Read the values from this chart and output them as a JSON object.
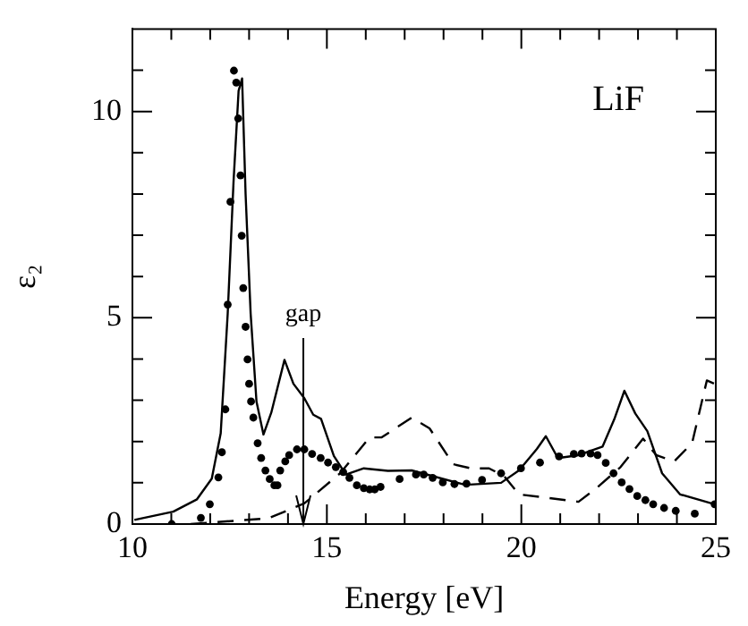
{
  "chart_data": {
    "type": "line",
    "xlabel": "Energy [eV]",
    "ylabel": "ε₂",
    "xlim": [
      10,
      25
    ],
    "ylim": [
      0,
      12
    ],
    "xticks": [
      10,
      {
        "value": 11,
        "label": null
      },
      {
        "value": 12,
        "label": null
      },
      {
        "value": 13,
        "label": null
      },
      {
        "value": 14,
        "label": null
      },
      15,
      {
        "value": 16,
        "label": null
      },
      {
        "value": 17,
        "label": null
      },
      {
        "value": 18,
        "label": null
      },
      {
        "value": 19,
        "label": null
      },
      20,
      {
        "value": 21,
        "label": null
      },
      {
        "value": 22,
        "label": null
      },
      {
        "value": 23,
        "label": null
      },
      {
        "value": 24,
        "label": null
      },
      25
    ],
    "yticks": [
      0,
      {
        "value": 1,
        "label": null
      },
      {
        "value": 2,
        "label": null
      },
      {
        "value": 3,
        "label": null
      },
      {
        "value": 4,
        "label": null
      },
      5,
      {
        "value": 6,
        "label": null
      },
      {
        "value": 7,
        "label": null
      },
      {
        "value": 8,
        "label": null
      },
      {
        "value": 9,
        "label": null
      },
      10,
      {
        "value": 11,
        "label": null
      }
    ],
    "grid": false,
    "legend": false,
    "annotations": [
      "LiF",
      "gap"
    ],
    "series": [
      {
        "type": "line",
        "color": "#000000",
        "line_style": "solid",
        "marker": "none",
        "x": [
          10.05,
          11.05,
          11.66,
          12.04,
          12.27,
          12.45,
          12.6,
          12.73,
          12.82,
          12.91,
          13.04,
          13.19,
          13.37,
          13.57,
          13.91,
          14.14,
          14.42,
          14.65,
          14.85,
          15.18,
          15.49,
          15.95,
          16.57,
          17.18,
          18.56,
          19.48,
          19.94,
          20.4,
          20.63,
          20.94,
          21.47,
          22.09,
          22.39,
          22.65,
          22.93,
          23.24,
          23.62,
          24.08,
          24.97
        ],
        "values": [
          0.1,
          0.3,
          0.6,
          1.1,
          2.2,
          5.1,
          8.3,
          10.5,
          10.8,
          8.0,
          5.1,
          2.97,
          2.17,
          2.7,
          3.98,
          3.4,
          3.05,
          2.65,
          2.55,
          1.65,
          1.2,
          1.35,
          1.29,
          1.3,
          0.95,
          1.0,
          1.3,
          1.82,
          2.13,
          1.6,
          1.67,
          1.88,
          2.54,
          3.23,
          2.68,
          2.25,
          1.23,
          0.72,
          0.48
        ]
      },
      {
        "type": "line",
        "color": "#000000",
        "line_style": "dashed",
        "marker": "none",
        "x": [
          11.5,
          13.5,
          14.42,
          15.34,
          16.1,
          16.41,
          17.18,
          17.64,
          18.25,
          18.71,
          19.17,
          19.56,
          19.94,
          20.55,
          21.47,
          21.93,
          22.55,
          23.13,
          23.47,
          23.93,
          24.39,
          24.77,
          24.97
        ],
        "values": [
          0,
          0.14,
          0.5,
          1.23,
          2.1,
          2.1,
          2.58,
          2.32,
          1.45,
          1.35,
          1.35,
          1.16,
          0.72,
          0.65,
          0.54,
          0.87,
          1.38,
          2.07,
          1.67,
          1.52,
          1.96,
          3.48,
          3.4
        ]
      },
      {
        "type": "scatter",
        "color": "#000000",
        "marker": "circle",
        "x": [
          11.01,
          11.76,
          11.99,
          12.21,
          12.3,
          12.39,
          12.45,
          12.52,
          12.61,
          12.67,
          12.72,
          12.78,
          12.81,
          12.85,
          12.91,
          12.96,
          13.0,
          13.05,
          13.11,
          13.22,
          13.31,
          13.42,
          13.53,
          13.65,
          13.73,
          13.8,
          13.93,
          14.03,
          14.23,
          14.42,
          14.62,
          14.84,
          15.03,
          15.23,
          15.42,
          15.58,
          15.77,
          15.95,
          16.1,
          16.23,
          16.38,
          16.87,
          17.29,
          17.49,
          17.72,
          17.98,
          18.28,
          18.59,
          18.99,
          19.48,
          19.99,
          20.48,
          20.97,
          21.35,
          21.55,
          21.78,
          21.96,
          22.17,
          22.37,
          22.58,
          22.78,
          22.98,
          23.19,
          23.39,
          23.67,
          23.97,
          24.46,
          24.97
        ],
        "values": [
          0,
          0.15,
          0.48,
          1.13,
          1.74,
          2.78,
          5.32,
          7.81,
          10.99,
          10.7,
          9.83,
          8.45,
          6.99,
          5.72,
          4.78,
          3.99,
          3.4,
          2.97,
          2.58,
          1.96,
          1.6,
          1.3,
          1.09,
          0.94,
          0.94,
          1.3,
          1.52,
          1.67,
          1.81,
          1.81,
          1.7,
          1.6,
          1.49,
          1.38,
          1.26,
          1.12,
          0.94,
          0.87,
          0.84,
          0.84,
          0.9,
          1.09,
          1.2,
          1.2,
          1.12,
          1.01,
          0.97,
          0.98,
          1.07,
          1.23,
          1.35,
          1.49,
          1.64,
          1.7,
          1.71,
          1.71,
          1.67,
          1.48,
          1.23,
          1.01,
          0.85,
          0.68,
          0.58,
          0.48,
          0.39,
          0.32,
          0.25,
          0.48
        ]
      }
    ]
  }
}
